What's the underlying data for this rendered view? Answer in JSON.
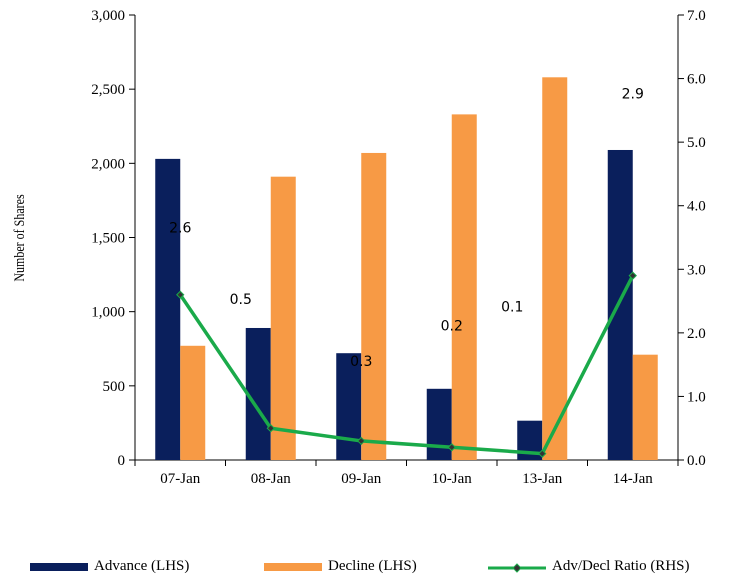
{
  "chart_data": {
    "type": "bar",
    "categories": [
      "07-Jan",
      "08-Jan",
      "09-Jan",
      "10-Jan",
      "13-Jan",
      "14-Jan"
    ],
    "series": [
      {
        "name": "Advance (LHS)",
        "type": "bar",
        "axis": "left",
        "color": "#0a1f5c",
        "values": [
          2030,
          890,
          720,
          480,
          265,
          2090
        ]
      },
      {
        "name": "Decline (LHS)",
        "type": "bar",
        "axis": "left",
        "color": "#f79a45",
        "values": [
          770,
          1910,
          2070,
          2330,
          2580,
          710
        ]
      },
      {
        "name": "Adv/Decl Ratio (RHS)",
        "type": "line",
        "axis": "right",
        "color": "#1aaa4a",
        "values": [
          2.6,
          0.5,
          0.3,
          0.2,
          0.1,
          2.9
        ],
        "labels": [
          "2.6",
          "0.5",
          "0.3",
          "0.2",
          "0.1",
          "2.9"
        ]
      }
    ],
    "ylabel": "Number of Shares",
    "ylim": [
      0,
      3000
    ],
    "yticks": [
      "0",
      "500",
      "1,000",
      "1,500",
      "2,000",
      "2,500",
      "3,000"
    ],
    "y2lim": [
      0,
      7
    ],
    "y2ticks": [
      "0.0",
      "1.0",
      "2.0",
      "3.0",
      "4.0",
      "5.0",
      "6.0",
      "7.0"
    ],
    "grid": false,
    "legend": "bottom"
  }
}
